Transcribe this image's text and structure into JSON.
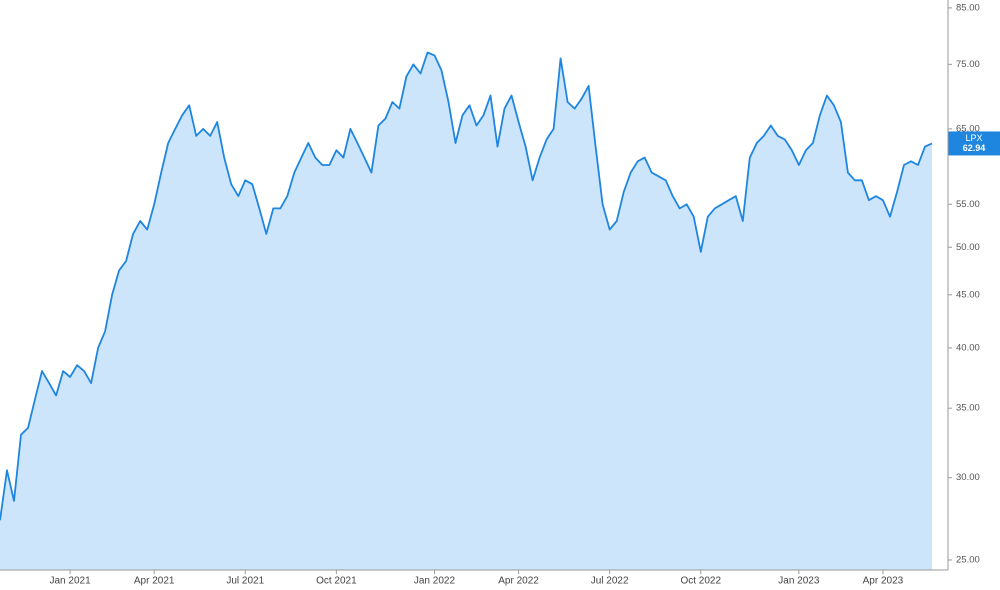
{
  "chart_data": {
    "type": "area",
    "log_scale": true,
    "series": [
      {
        "name": "LPX",
        "color": "#1f86e0",
        "fill": "#cce5fb",
        "values": [
          27.3,
          30.5,
          28.5,
          33,
          33.5,
          35.7,
          38,
          37,
          36,
          38,
          37.5,
          38.5,
          38,
          37,
          40,
          41.5,
          45,
          47.5,
          48.5,
          51.5,
          53,
          52,
          55,
          59,
          63,
          65,
          67,
          68.5,
          64,
          65,
          64,
          66,
          61,
          57.5,
          56,
          58,
          57.5,
          54.5,
          51.5,
          54.5,
          54.5,
          56,
          59,
          61,
          63,
          61,
          60,
          60,
          62,
          61,
          65,
          63,
          61,
          59,
          65.5,
          66.5,
          69,
          68,
          73,
          75,
          73.5,
          77,
          76.5,
          74,
          69,
          63,
          67,
          68.5,
          65.5,
          67,
          70,
          62.5,
          68,
          70,
          66,
          62.5,
          58,
          61,
          63.5,
          65,
          76,
          69,
          68,
          69.5,
          71.5,
          62.5,
          55,
          52,
          53,
          56.5,
          59,
          60.5,
          61,
          59,
          58.5,
          58,
          56,
          54.5,
          55,
          53.5,
          49.5,
          53.5,
          54.5,
          55,
          55.5,
          56,
          53,
          61,
          63,
          64,
          65.5,
          64,
          63.5,
          62,
          60,
          62,
          63,
          67,
          70,
          68.5,
          66,
          59,
          58,
          58,
          55.5,
          56,
          55.5,
          53.5,
          56.5,
          60,
          60.5,
          60,
          62.5,
          62.94
        ]
      }
    ],
    "categories": [
      null,
      null,
      null,
      null,
      null,
      null,
      null,
      null,
      null,
      null,
      "Jan 2021",
      null,
      null,
      null,
      null,
      null,
      null,
      null,
      null,
      null,
      null,
      null,
      "Apr 2021",
      null,
      null,
      null,
      null,
      null,
      null,
      null,
      null,
      null,
      null,
      null,
      null,
      "Jul 2021",
      null,
      null,
      null,
      null,
      null,
      null,
      null,
      null,
      null,
      null,
      null,
      null,
      "Oct 2021",
      null,
      null,
      null,
      null,
      null,
      null,
      null,
      null,
      null,
      null,
      null,
      null,
      null,
      "Jan 2022",
      null,
      null,
      null,
      null,
      null,
      null,
      null,
      null,
      null,
      null,
      null,
      "Apr 2022",
      null,
      null,
      null,
      null,
      null,
      null,
      null,
      null,
      null,
      null,
      null,
      null,
      "Jul 2022",
      null,
      null,
      null,
      null,
      null,
      null,
      null,
      null,
      null,
      null,
      null,
      null,
      "Oct 2022",
      null,
      null,
      null,
      null,
      null,
      null,
      null,
      null,
      null,
      null,
      null,
      null,
      null,
      "Jan 2023",
      null,
      null,
      null,
      null,
      null,
      null,
      null,
      null,
      null,
      null,
      null,
      "Apr 2023",
      null,
      null,
      null,
      null,
      null,
      null,
      null
    ],
    "ylim": [
      24.45,
      86.5
    ],
    "yticks": [
      {
        "value": 25,
        "label": "25.00"
      },
      {
        "value": 30,
        "label": "30.00"
      },
      {
        "value": 35,
        "label": "35.00"
      },
      {
        "value": 40,
        "label": "40.00"
      },
      {
        "value": 45,
        "label": "45.00"
      },
      {
        "value": 50,
        "label": "50.00"
      },
      {
        "value": 55,
        "label": "55.00"
      },
      {
        "value": 65,
        "label": "65.00"
      },
      {
        "value": 75,
        "label": "75.00"
      },
      {
        "value": 85,
        "label": "85.00"
      }
    ]
  }
}
